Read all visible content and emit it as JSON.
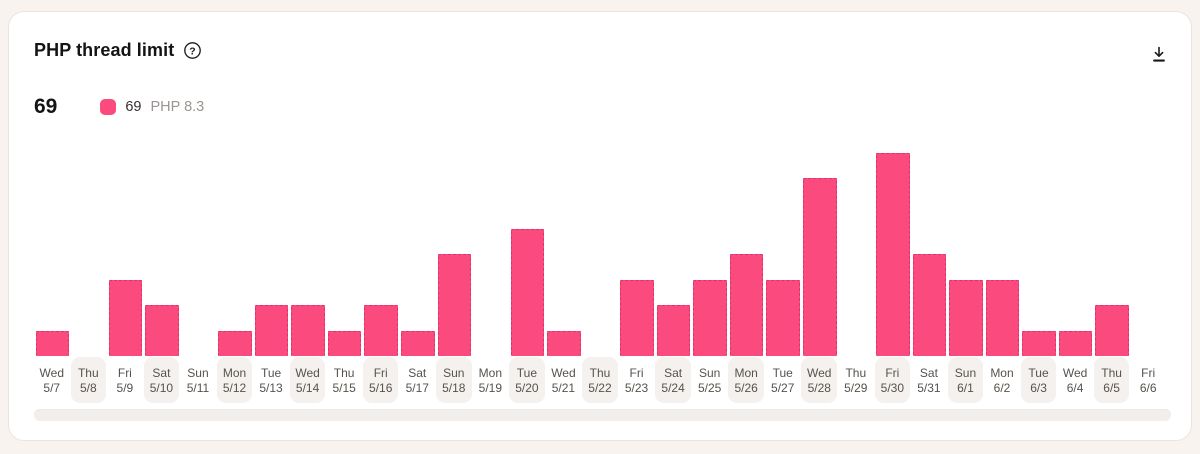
{
  "header": {
    "title": "PHP thread limit",
    "help_icon": "question-mark-circle-icon",
    "download_icon": "download-icon"
  },
  "summary": {
    "total": "69",
    "legend": {
      "value": "69",
      "label": "PHP 8.3",
      "color": "#FA4A7E"
    }
  },
  "colors": {
    "accent": "#FA4A7E",
    "accent_border": "#E23169",
    "page_bg": "#F9F3F0",
    "card_bg": "#FFFFFF",
    "label_shade": "#F5F1EE",
    "scroll_track": "#F2EEEB",
    "label_text": "#57524D",
    "muted_text": "#9B948E"
  },
  "chart_data": {
    "type": "bar",
    "title": "PHP thread limit",
    "categories": [
      "5/7",
      "5/8",
      "5/9",
      "5/10",
      "5/11",
      "5/12",
      "5/13",
      "5/14",
      "5/15",
      "5/16",
      "5/17",
      "5/18",
      "5/19",
      "5/20",
      "5/21",
      "5/22",
      "5/23",
      "5/24",
      "5/25",
      "5/26",
      "5/27",
      "5/28",
      "5/29",
      "5/30",
      "5/31",
      "6/1",
      "6/2",
      "6/3",
      "6/4",
      "6/5",
      "6/6"
    ],
    "day_names": [
      "Wed",
      "Thu",
      "Fri",
      "Sat",
      "Sun",
      "Mon",
      "Tue",
      "Wed",
      "Thu",
      "Fri",
      "Sat",
      "Sun",
      "Mon",
      "Tue",
      "Wed",
      "Thu",
      "Fri",
      "Sat",
      "Sun",
      "Mon",
      "Tue",
      "Wed",
      "Thu",
      "Fri",
      "Sat",
      "Sun",
      "Mon",
      "Tue",
      "Wed",
      "Thu",
      "Fri"
    ],
    "series": [
      {
        "name": "PHP 8.3",
        "total": 69,
        "color": "#FA4A7E",
        "values": [
          1,
          0,
          3,
          2,
          0,
          1,
          2,
          2,
          1,
          2,
          1,
          4,
          0,
          5,
          1,
          0,
          3,
          2,
          3,
          4,
          3,
          7,
          0,
          8,
          4,
          3,
          3,
          1,
          1,
          2,
          0
        ]
      }
    ],
    "ylim": [
      0,
      8
    ],
    "xlabel": "",
    "ylabel": "",
    "grid": false,
    "legend_position": "top-left",
    "shaded_alternate_labels": true
  }
}
